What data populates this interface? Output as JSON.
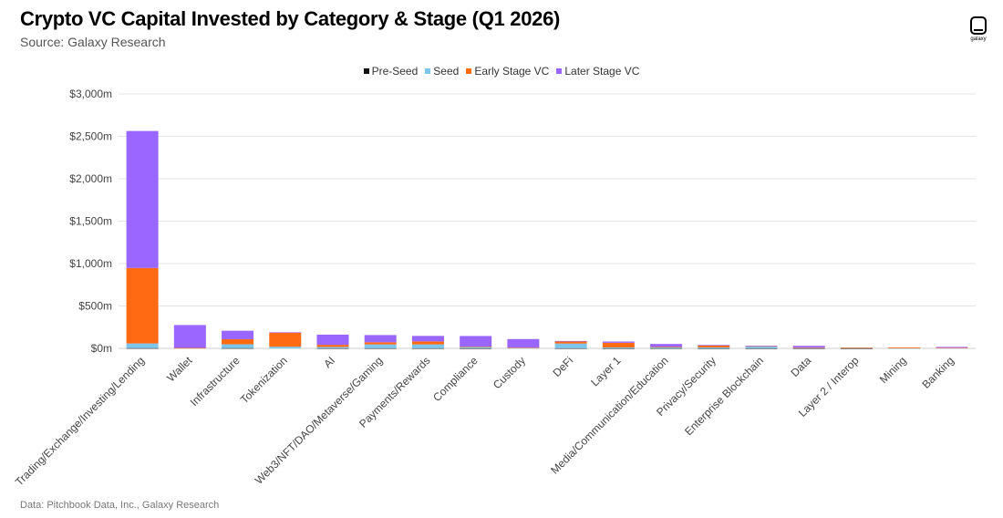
{
  "header": {
    "title": "Crypto VC Capital Invested by Category & Stage (Q1 2026)",
    "subtitle": "Source: Galaxy Research",
    "logo_text": "galaxy"
  },
  "footer": {
    "note": "Data: Pitchbook Data, Inc., Galaxy Research"
  },
  "chart_data": {
    "type": "bar",
    "stacked": true,
    "legend_position": "top-center",
    "grid": true,
    "ylim": [
      0,
      3000
    ],
    "yticks": [
      0,
      500,
      1000,
      1500,
      2000,
      2500,
      3000
    ],
    "ytick_labels": [
      "$0m",
      "$500m",
      "$1,000m",
      "$1,500m",
      "$2,000m",
      "$2,500m",
      "$3,000m"
    ],
    "categories": [
      "Trading/Exchange/Investing/Lending",
      "Wallet",
      "Infrastructure",
      "Tokenization",
      "AI",
      "Web3/NFT/DAO/Metaverse/Gaming",
      "Payments/Rewards",
      "Compliance",
      "Custody",
      "DeFi",
      "Layer 1",
      "Media/Communication/Education",
      "Privacy/Security",
      "Enterprise Blockchain",
      "Data",
      "Layer 2 / Interop",
      "Mining",
      "Banking"
    ],
    "series": [
      {
        "name": "Pre-Seed",
        "color": "#111111",
        "values": [
          3,
          0,
          3,
          0,
          2,
          2,
          2,
          1,
          0,
          2,
          1,
          2,
          1,
          1,
          1,
          1,
          0,
          0
        ]
      },
      {
        "name": "Seed",
        "color": "#7cc6ec",
        "values": [
          55,
          0,
          45,
          20,
          15,
          45,
          45,
          15,
          5,
          55,
          10,
          10,
          10,
          20,
          5,
          8,
          2,
          5
        ]
      },
      {
        "name": "Early Stage VC",
        "color": "#ff6a13",
        "values": [
          890,
          5,
          60,
          165,
          25,
          25,
          35,
          5,
          5,
          25,
          55,
          5,
          25,
          5,
          2,
          2,
          10,
          2
        ]
      },
      {
        "name": "Later Stage VC",
        "color": "#9966ff",
        "values": [
          1615,
          270,
          100,
          5,
          120,
          85,
          65,
          125,
          100,
          5,
          15,
          35,
          5,
          5,
          22,
          0,
          0,
          10
        ]
      }
    ]
  }
}
